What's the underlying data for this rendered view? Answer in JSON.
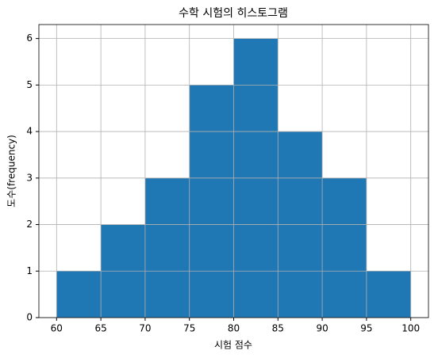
{
  "chart_data": {
    "type": "histogram",
    "title": "수학 시험의 히스토그램",
    "xlabel": "시험 점수",
    "ylabel": "도수(frequency)",
    "bins": [
      60,
      65,
      70,
      75,
      80,
      85,
      90,
      95,
      100
    ],
    "values": [
      1,
      2,
      3,
      5,
      6,
      4,
      3,
      1
    ],
    "color": "#1f77b4",
    "xlim": [
      58,
      102
    ],
    "ylim": [
      0,
      6.3
    ],
    "xticks": [
      60,
      65,
      70,
      75,
      80,
      85,
      90,
      95,
      100
    ],
    "yticks": [
      0,
      1,
      2,
      3,
      4,
      5,
      6
    ],
    "grid": true
  }
}
